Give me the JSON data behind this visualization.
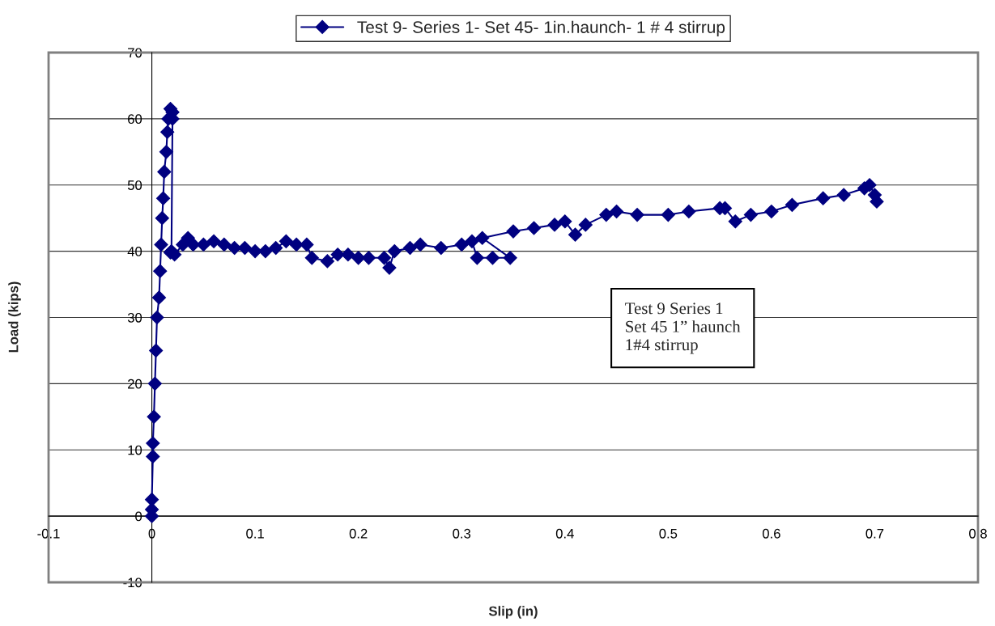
{
  "chart_data": {
    "type": "line",
    "xlabel": "Slip (in)",
    "ylabel": "Load (kips)",
    "xlim": [
      -0.1,
      0.8
    ],
    "xticks": [
      -0.1,
      0,
      0.1,
      0.2,
      0.3,
      0.4,
      0.5,
      0.6,
      0.7,
      0.8
    ],
    "ylim": [
      -10,
      70
    ],
    "yticks": [
      -10,
      0,
      10,
      20,
      30,
      40,
      50,
      60,
      70
    ],
    "grid": "y",
    "legend": "top",
    "marker": "diamond",
    "line_style": "solid",
    "annotations": [
      "Test 9 Series 1\nSet 45 1” haunch\n1#4 stirrup"
    ],
    "series": [
      {
        "name": "Test 9- Series 1- Set 45- 1in.haunch- 1 # 4 stirrup",
        "color": "#000080",
        "x": [
          0,
          0,
          0,
          0.001,
          0.001,
          0.002,
          0.003,
          0.004,
          0.005,
          0.007,
          0.008,
          0.009,
          0.01,
          0.011,
          0.012,
          0.014,
          0.015,
          0.016,
          0.018,
          0.02,
          0.02,
          0.019,
          0.018,
          0.022,
          0.03,
          0.035,
          0.04,
          0.05,
          0.06,
          0.07,
          0.08,
          0.09,
          0.1,
          0.11,
          0.12,
          0.13,
          0.14,
          0.15,
          0.155,
          0.17,
          0.18,
          0.19,
          0.2,
          0.21,
          0.225,
          0.23,
          0.235,
          0.25,
          0.26,
          0.28,
          0.3,
          0.31,
          0.315,
          0.33,
          0.347,
          0.32,
          0.35,
          0.37,
          0.39,
          0.4,
          0.41,
          0.42,
          0.44,
          0.45,
          0.47,
          0.5,
          0.52,
          0.55,
          0.555,
          0.565,
          0.58,
          0.6,
          0.62,
          0.65,
          0.67,
          0.69,
          0.695,
          0.7,
          0.702
        ],
        "values": [
          0,
          1,
          2.5,
          9,
          11,
          15,
          20,
          25,
          30,
          33,
          37,
          41,
          45,
          48,
          52,
          55,
          58,
          60,
          61.5,
          61,
          60,
          40,
          39.8,
          39.5,
          41,
          42,
          41,
          41,
          41.5,
          41,
          40.5,
          40.5,
          40,
          40,
          40.5,
          41.5,
          41,
          41,
          39,
          38.5,
          39.5,
          39.5,
          39,
          39,
          39,
          37.5,
          40,
          40.5,
          41,
          40.5,
          41,
          41.5,
          39,
          39,
          39,
          42,
          43,
          43.5,
          44,
          44.5,
          42.5,
          44,
          45.5,
          46,
          45.5,
          45.5,
          46,
          46.5,
          46.5,
          44.5,
          45.5,
          46,
          47,
          48,
          48.5,
          49.5,
          50,
          48.5,
          47.5
        ]
      }
    ]
  }
}
